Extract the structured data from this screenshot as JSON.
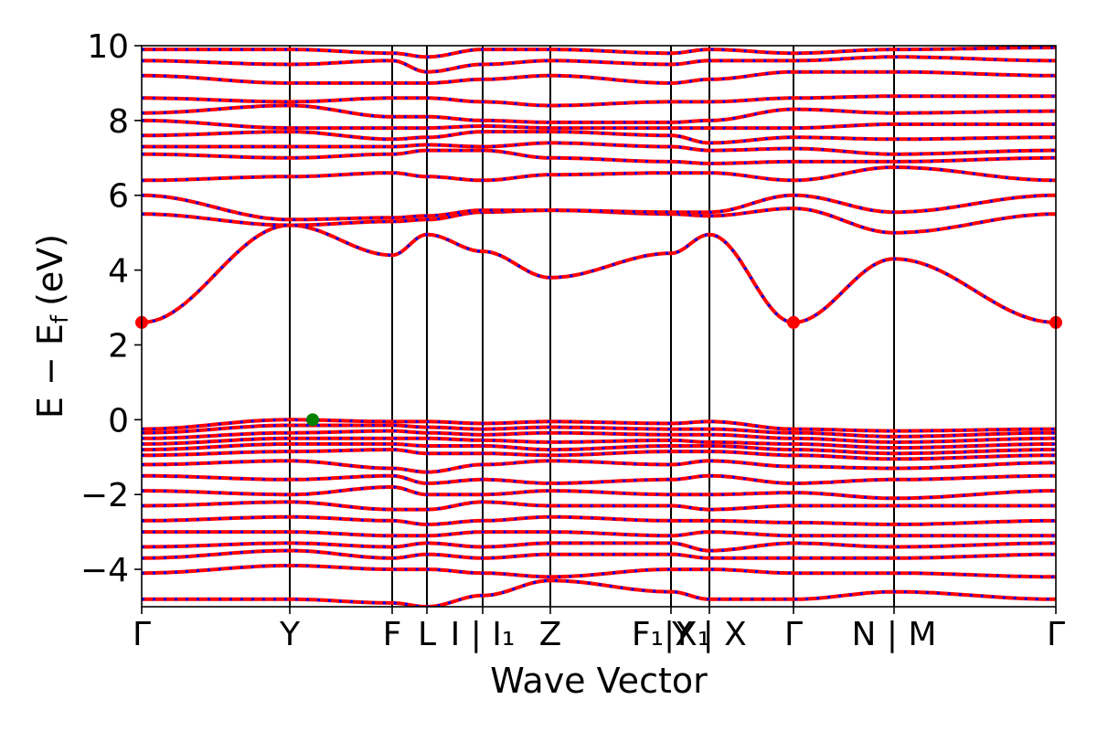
{
  "chart_data": {
    "type": "line",
    "xlabel": "Wave Vector",
    "ylabel_main": "E − E",
    "ylabel_sub": "f",
    "ylabel_unit": "(eV)",
    "ylim": [
      -5,
      10
    ],
    "yticks": [
      {
        "value": -4,
        "label": "−4"
      },
      {
        "value": -2,
        "label": "−2"
      },
      {
        "value": 0,
        "label": "0"
      },
      {
        "value": 2,
        "label": "2"
      },
      {
        "value": 4,
        "label": "4"
      },
      {
        "value": 6,
        "label": "6"
      },
      {
        "value": 8,
        "label": "8"
      },
      {
        "value": 10,
        "label": "10"
      }
    ],
    "xlim": [
      0,
      1
    ],
    "kpath_labels": [
      {
        "x": 0.0,
        "label": "Γ"
      },
      {
        "x": 0.162,
        "label": "Y"
      },
      {
        "x": 0.274,
        "label": "F"
      },
      {
        "x": 0.312,
        "label": "L"
      },
      {
        "x": 0.373,
        "label": "I | I₁"
      },
      {
        "x": 0.447,
        "label": "Z"
      },
      {
        "x": 0.579,
        "label": "F₁|X₁"
      },
      {
        "x": 0.621,
        "label": "Y | X"
      },
      {
        "x": 0.713,
        "label": "Γ"
      },
      {
        "x": 0.823,
        "label": "N | M"
      },
      {
        "x": 1.0,
        "label": "Γ"
      }
    ],
    "vlines": [
      0.162,
      0.274,
      0.312,
      0.373,
      0.447,
      0.579,
      0.621,
      0.713,
      0.823
    ],
    "series": [
      {
        "role": "spin-up",
        "color": "#ff0000",
        "style": "solid"
      },
      {
        "role": "spin-down",
        "color": "#0000ff",
        "style": "dotted"
      }
    ],
    "cbm_markers": [
      {
        "x": 0.0,
        "y": 2.6,
        "color": "#ff0000"
      },
      {
        "x": 0.713,
        "y": 2.6,
        "color": "#ff0000"
      },
      {
        "x": 1.0,
        "y": 2.6,
        "color": "#ff0000"
      }
    ],
    "vbm_markers": [
      {
        "x": 0.187,
        "y": 0.0,
        "color": "#008000"
      }
    ],
    "conduction_bands": [
      [
        2.6,
        5.2,
        4.4,
        4.95,
        4.5,
        3.8,
        4.45,
        4.95,
        2.6,
        4.3,
        2.6
      ],
      [
        5.5,
        5.2,
        5.3,
        5.35,
        5.55,
        5.6,
        5.5,
        5.45,
        5.65,
        5.0,
        5.5
      ],
      [
        6.0,
        5.35,
        5.4,
        5.45,
        5.6,
        5.6,
        5.55,
        5.55,
        6.0,
        5.55,
        6.0
      ],
      [
        6.4,
        6.5,
        6.6,
        6.5,
        6.4,
        6.55,
        6.6,
        6.6,
        6.4,
        6.75,
        6.4
      ],
      [
        7.1,
        7.0,
        7.1,
        7.2,
        7.2,
        7.0,
        6.9,
        6.85,
        6.9,
        6.9,
        7.0
      ],
      [
        7.3,
        7.3,
        7.3,
        7.35,
        7.3,
        7.4,
        7.3,
        7.2,
        7.25,
        7.1,
        7.2
      ],
      [
        7.6,
        7.7,
        7.5,
        7.55,
        7.7,
        7.7,
        7.6,
        7.4,
        7.55,
        7.5,
        7.55
      ],
      [
        8.0,
        7.8,
        7.8,
        7.8,
        7.85,
        7.8,
        7.8,
        7.8,
        7.8,
        7.9,
        7.9
      ],
      [
        8.2,
        8.4,
        8.1,
        8.1,
        8.0,
        7.95,
        7.95,
        8.0,
        8.3,
        8.2,
        8.25
      ],
      [
        8.6,
        8.5,
        8.6,
        8.6,
        8.5,
        8.4,
        8.5,
        8.5,
        8.6,
        8.65,
        8.65
      ],
      [
        9.2,
        9.0,
        9.0,
        9.0,
        9.1,
        9.2,
        9.0,
        9.1,
        9.3,
        9.3,
        9.2
      ],
      [
        9.6,
        9.5,
        9.6,
        9.3,
        9.5,
        9.6,
        9.5,
        9.6,
        9.6,
        9.7,
        9.6
      ],
      [
        9.9,
        9.9,
        9.8,
        9.7,
        9.9,
        9.9,
        9.8,
        9.9,
        9.8,
        9.9,
        9.95
      ]
    ],
    "valence_bands": [
      [
        -0.25,
        0.0,
        -0.05,
        -0.05,
        -0.1,
        -0.05,
        -0.1,
        -0.05,
        -0.25,
        -0.3,
        -0.25
      ],
      [
        -0.35,
        -0.15,
        -0.15,
        -0.2,
        -0.25,
        -0.2,
        -0.25,
        -0.25,
        -0.35,
        -0.45,
        -0.35
      ],
      [
        -0.5,
        -0.35,
        -0.3,
        -0.35,
        -0.4,
        -0.35,
        -0.4,
        -0.4,
        -0.5,
        -0.6,
        -0.5
      ],
      [
        -0.65,
        -0.5,
        -0.5,
        -0.5,
        -0.55,
        -0.6,
        -0.55,
        -0.6,
        -0.65,
        -0.75,
        -0.65
      ],
      [
        -0.8,
        -0.65,
        -0.65,
        -0.7,
        -0.7,
        -0.8,
        -0.7,
        -0.7,
        -0.8,
        -0.9,
        -0.8
      ],
      [
        -0.95,
        -0.85,
        -0.8,
        -0.9,
        -0.9,
        -0.95,
        -0.85,
        -0.85,
        -0.95,
        -1.05,
        -0.95
      ],
      [
        -1.2,
        -1.1,
        -1.3,
        -1.4,
        -1.2,
        -1.1,
        -1.2,
        -1.1,
        -1.25,
        -1.3,
        -1.15
      ],
      [
        -1.5,
        -1.6,
        -1.5,
        -1.7,
        -1.6,
        -1.7,
        -1.6,
        -1.5,
        -1.7,
        -1.6,
        -1.5
      ],
      [
        -1.9,
        -2.0,
        -1.8,
        -2.0,
        -2.0,
        -1.9,
        -2.0,
        -2.0,
        -1.95,
        -2.1,
        -1.9
      ],
      [
        -2.3,
        -2.2,
        -2.4,
        -2.4,
        -2.2,
        -2.3,
        -2.3,
        -2.4,
        -2.3,
        -2.3,
        -2.3
      ],
      [
        -2.7,
        -2.6,
        -2.7,
        -2.8,
        -2.7,
        -2.6,
        -2.7,
        -2.7,
        -2.75,
        -2.8,
        -2.7
      ],
      [
        -3.0,
        -3.0,
        -3.1,
        -3.1,
        -3.0,
        -3.0,
        -3.1,
        -3.0,
        -3.1,
        -3.1,
        -3.1
      ],
      [
        -3.4,
        -3.3,
        -3.4,
        -3.3,
        -3.4,
        -3.3,
        -3.3,
        -3.5,
        -3.3,
        -3.4,
        -3.3
      ],
      [
        -3.7,
        -3.5,
        -3.7,
        -3.6,
        -3.7,
        -3.6,
        -3.6,
        -3.7,
        -3.7,
        -3.7,
        -3.6
      ],
      [
        -4.1,
        -3.9,
        -4.0,
        -4.0,
        -4.1,
        -4.2,
        -4.0,
        -4.0,
        -4.1,
        -4.1,
        -4.2
      ],
      [
        -4.8,
        -4.8,
        -4.9,
        -5.0,
        -4.7,
        -4.3,
        -4.6,
        -4.8,
        -4.8,
        -4.6,
        -4.8
      ]
    ]
  }
}
